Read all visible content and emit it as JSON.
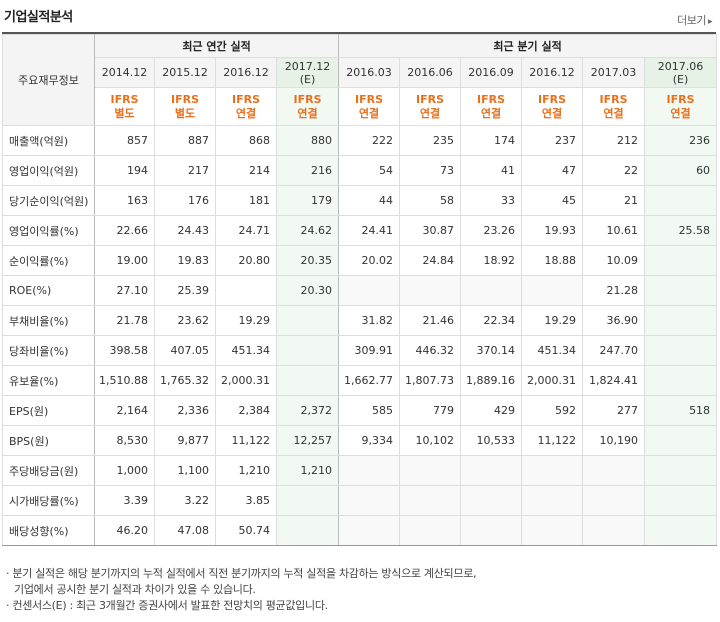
{
  "title": "기업실적분석",
  "more": "더보기",
  "header": {
    "corner": "주요재무정보",
    "annual_group": "최근 연간 실적",
    "quarter_group": "최근 분기 실적",
    "periods": [
      "2014.12",
      "2015.12",
      "2016.12",
      "2017.12\n(E)",
      "2016.03",
      "2016.06",
      "2016.09",
      "2016.12",
      "2017.03",
      "2017.06 (E)"
    ],
    "ifrs": [
      "IFRS\n별도",
      "IFRS\n별도",
      "IFRS\n연결",
      "IFRS\n연결",
      "IFRS\n연결",
      "IFRS\n연결",
      "IFRS\n연결",
      "IFRS\n연결",
      "IFRS\n연결",
      "IFRS\n연결"
    ]
  },
  "rows": [
    {
      "label": "매출액(억원)",
      "values": [
        "857",
        "887",
        "868",
        "880",
        "222",
        "235",
        "174",
        "237",
        "212",
        "236"
      ]
    },
    {
      "label": "영업이익(억원)",
      "values": [
        "194",
        "217",
        "214",
        "216",
        "54",
        "73",
        "41",
        "47",
        "22",
        "60"
      ]
    },
    {
      "label": "당기순이익(억원)",
      "values": [
        "163",
        "176",
        "181",
        "179",
        "44",
        "58",
        "33",
        "45",
        "21",
        ""
      ]
    },
    {
      "label": "영업이익률(%)",
      "values": [
        "22.66",
        "24.43",
        "24.71",
        "24.62",
        "24.41",
        "30.87",
        "23.26",
        "19.93",
        "10.61",
        "25.58"
      ]
    },
    {
      "label": "순이익률(%)",
      "values": [
        "19.00",
        "19.83",
        "20.80",
        "20.35",
        "20.02",
        "24.84",
        "18.92",
        "18.88",
        "10.09",
        ""
      ]
    },
    {
      "label": "ROE(%)",
      "values": [
        "27.10",
        "25.39",
        "",
        "20.30",
        "",
        "",
        "",
        "",
        "21.28",
        ""
      ]
    },
    {
      "label": "부채비율(%)",
      "values": [
        "21.78",
        "23.62",
        "19.29",
        "",
        "31.82",
        "21.46",
        "22.34",
        "19.29",
        "36.90",
        ""
      ]
    },
    {
      "label": "당좌비율(%)",
      "values": [
        "398.58",
        "407.05",
        "451.34",
        "",
        "309.91",
        "446.32",
        "370.14",
        "451.34",
        "247.70",
        ""
      ]
    },
    {
      "label": "유보율(%)",
      "values": [
        "1,510.88",
        "1,765.32",
        "2,000.31",
        "",
        "1,662.77",
        "1,807.73",
        "1,889.16",
        "2,000.31",
        "1,824.41",
        ""
      ]
    },
    {
      "label": "EPS(원)",
      "values": [
        "2,164",
        "2,336",
        "2,384",
        "2,372",
        "585",
        "779",
        "429",
        "592",
        "277",
        "518"
      ]
    },
    {
      "label": "BPS(원)",
      "values": [
        "8,530",
        "9,877",
        "11,122",
        "12,257",
        "9,334",
        "10,102",
        "10,533",
        "11,122",
        "10,190",
        ""
      ]
    },
    {
      "label": "주당배당금(원)",
      "values": [
        "1,000",
        "1,100",
        "1,210",
        "1,210",
        "",
        "",
        "",
        "",
        "",
        ""
      ]
    },
    {
      "label": "시가배당률(%)",
      "values": [
        "3.39",
        "3.22",
        "3.85",
        "",
        "",
        "",
        "",
        "",
        "",
        ""
      ]
    },
    {
      "label": "배당성향(%)",
      "values": [
        "46.20",
        "47.08",
        "50.74",
        "",
        "",
        "",
        "",
        "",
        "",
        ""
      ]
    }
  ],
  "notes": [
    "· 분기 실적은 해당 분기까지의 누적 실적에서 직전 분기까지의 누적 실적을 차감하는 방식으로 계산되므로,",
    "  기업에서 공시한 분기 실적과 차이가 있을 수 있습니다.",
    "· 컨센서스(E) : 최근 3개월간 증권사에서 발표한 전망치의 평균값입니다."
  ],
  "colors": {
    "ifrs": "#e8711f",
    "estimate_bg": "#f2f9f2"
  }
}
